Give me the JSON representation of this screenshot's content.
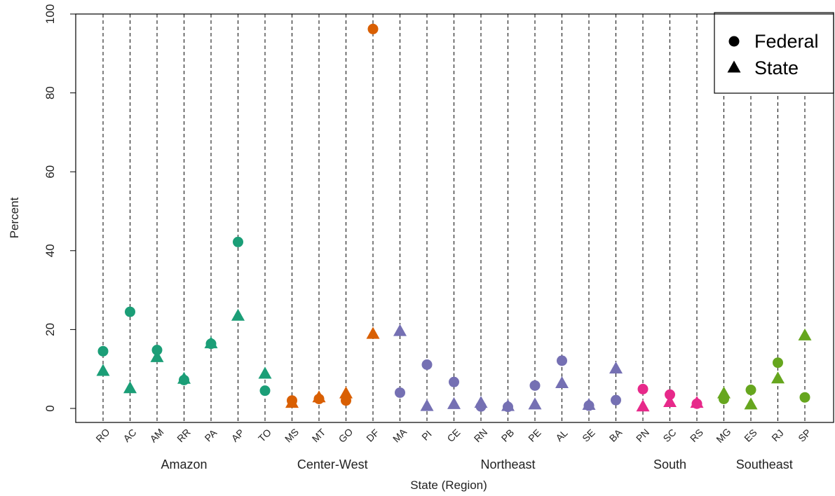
{
  "chart_data": {
    "type": "scatter",
    "xlabel": "State (Region)",
    "ylabel": "Percent",
    "ylim": [
      0,
      100
    ],
    "yticks": [
      "0",
      "20",
      "40",
      "60",
      "80",
      "100"
    ],
    "categories": [
      "RO",
      "AC",
      "AM",
      "RR",
      "PA",
      "AP",
      "TO",
      "MS",
      "MT",
      "GO",
      "DF",
      "MA",
      "PI",
      "CE",
      "RN",
      "PB",
      "PE",
      "AL",
      "SE",
      "BA",
      "PN",
      "SC",
      "RS",
      "MG",
      "ES",
      "RJ",
      "SP"
    ],
    "regions": [
      {
        "name": "Amazon",
        "states": [
          "RO",
          "AC",
          "AM",
          "RR",
          "PA",
          "AP",
          "TO"
        ],
        "color": "#1b9e77"
      },
      {
        "name": "Center-West",
        "states": [
          "MS",
          "MT",
          "GO",
          "DF"
        ],
        "color": "#d95f02"
      },
      {
        "name": "Northeast",
        "states": [
          "MA",
          "PI",
          "CE",
          "RN",
          "PB",
          "PE",
          "AL",
          "SE",
          "BA"
        ],
        "color": "#7570b3"
      },
      {
        "name": "South",
        "states": [
          "PN",
          "SC",
          "RS"
        ],
        "color": "#e7298a"
      },
      {
        "name": "Southeast",
        "states": [
          "MG",
          "ES",
          "RJ",
          "SP"
        ],
        "color": "#66a61e"
      }
    ],
    "series": [
      {
        "name": "Federal",
        "marker": "circle",
        "values": [
          14.5,
          24.5,
          14.8,
          7.2,
          16.4,
          42.2,
          4.5,
          2.0,
          2.4,
          2.0,
          96.2,
          4.0,
          11.1,
          6.7,
          0.5,
          0.4,
          5.8,
          12.1,
          0.7,
          2.1,
          4.9,
          3.5,
          1.2,
          2.4,
          4.7,
          11.6,
          2.8
        ]
      },
      {
        "name": "State",
        "marker": "triangle",
        "values": [
          9.4,
          5.0,
          12.9,
          7.4,
          16.4,
          23.4,
          8.7,
          1.3,
          2.7,
          3.7,
          18.8,
          19.5,
          0.5,
          1.0,
          1.3,
          0.5,
          0.9,
          6.3,
          0.8,
          10.0,
          0.4,
          1.5,
          1.3,
          3.7,
          0.9,
          7.5,
          18.4
        ]
      }
    ],
    "legend": {
      "position": "top-right",
      "entries": [
        "Federal",
        "State"
      ]
    },
    "grid": "vertical dashed lines per category"
  }
}
